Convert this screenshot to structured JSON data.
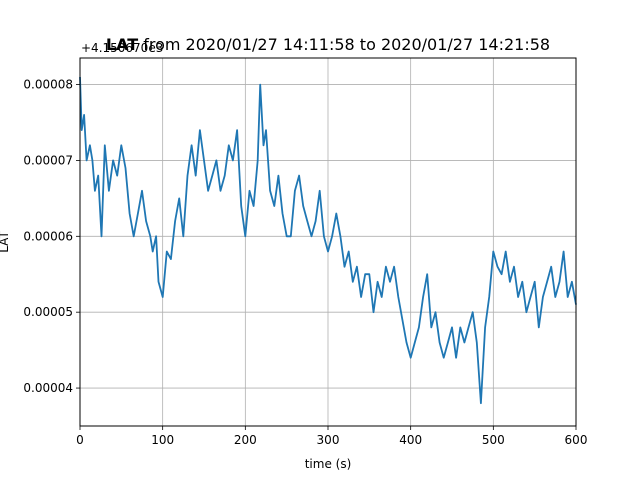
{
  "chart_data": {
    "type": "line",
    "title_bold": "LAT",
    "title_rest": " from 2020/01/27 14:11:58 to 2020/01/27 14:21:58",
    "offset_label": "+4.150670e3",
    "xlabel": "time (s)",
    "ylabel": "LAT",
    "xlim": [
      0,
      600
    ],
    "ylim": [
      3.5e-05,
      8.35e-05
    ],
    "xticks": [
      0,
      100,
      200,
      300,
      400,
      500,
      600
    ],
    "yticks": [
      4e-05,
      5e-05,
      6e-05,
      7e-05,
      8e-05
    ],
    "ytick_labels": [
      "0.00004",
      "0.00005",
      "0.00006",
      "0.00007",
      "0.00008"
    ],
    "grid": true,
    "color": "#1f77b4",
    "series": [
      {
        "x": [
          0,
          2,
          5,
          8,
          12,
          15,
          18,
          22,
          26,
          30,
          35,
          40,
          45,
          50,
          55,
          60,
          65,
          70,
          75,
          80,
          85,
          88,
          92,
          95,
          100,
          105,
          110,
          115,
          120,
          125,
          130,
          135,
          140,
          145,
          150,
          155,
          160,
          165,
          170,
          175,
          180,
          185,
          190,
          195,
          200,
          205,
          210,
          215,
          218,
          222,
          225,
          230,
          235,
          240,
          245,
          250,
          255,
          260,
          265,
          270,
          275,
          280,
          285,
          290,
          295,
          300,
          305,
          310,
          315,
          320,
          325,
          330,
          335,
          340,
          345,
          350,
          355,
          360,
          365,
          370,
          375,
          380,
          385,
          390,
          395,
          400,
          405,
          410,
          415,
          420,
          425,
          430,
          435,
          440,
          445,
          450,
          455,
          460,
          465,
          470,
          475,
          480,
          485,
          490,
          495,
          500,
          505,
          510,
          515,
          520,
          525,
          530,
          535,
          540,
          545,
          550,
          555,
          560,
          565,
          570,
          575,
          580,
          585,
          590,
          595,
          600
        ],
        "y": [
          8.1e-05,
          7.4e-05,
          7.6e-05,
          7e-05,
          7.2e-05,
          7e-05,
          6.6e-05,
          6.8e-05,
          6e-05,
          7.2e-05,
          6.6e-05,
          7e-05,
          6.8e-05,
          7.2e-05,
          6.9e-05,
          6.3e-05,
          6e-05,
          6.3e-05,
          6.6e-05,
          6.2e-05,
          6e-05,
          5.8e-05,
          6e-05,
          5.4e-05,
          5.2e-05,
          5.8e-05,
          5.7e-05,
          6.2e-05,
          6.5e-05,
          6e-05,
          6.8e-05,
          7.2e-05,
          6.8e-05,
          7.4e-05,
          7e-05,
          6.6e-05,
          6.8e-05,
          7e-05,
          6.6e-05,
          6.8e-05,
          7.2e-05,
          7e-05,
          7.4e-05,
          6.4e-05,
          6e-05,
          6.6e-05,
          6.4e-05,
          7e-05,
          8e-05,
          7.2e-05,
          7.4e-05,
          6.6e-05,
          6.4e-05,
          6.8e-05,
          6.3e-05,
          6e-05,
          6e-05,
          6.6e-05,
          6.8e-05,
          6.4e-05,
          6.2e-05,
          6e-05,
          6.2e-05,
          6.6e-05,
          6e-05,
          5.8e-05,
          6e-05,
          6.3e-05,
          6e-05,
          5.6e-05,
          5.8e-05,
          5.4e-05,
          5.6e-05,
          5.2e-05,
          5.5e-05,
          5.5e-05,
          5e-05,
          5.4e-05,
          5.2e-05,
          5.6e-05,
          5.4e-05,
          5.6e-05,
          5.2e-05,
          4.9e-05,
          4.6e-05,
          4.4e-05,
          4.6e-05,
          4.8e-05,
          5.2e-05,
          5.5e-05,
          4.8e-05,
          5e-05,
          4.6e-05,
          4.4e-05,
          4.6e-05,
          4.8e-05,
          4.4e-05,
          4.8e-05,
          4.6e-05,
          4.8e-05,
          5e-05,
          4.6e-05,
          3.8e-05,
          4.8e-05,
          5.2e-05,
          5.8e-05,
          5.6e-05,
          5.5e-05,
          5.8e-05,
          5.4e-05,
          5.6e-05,
          5.2e-05,
          5.4e-05,
          5e-05,
          5.2e-05,
          5.4e-05,
          4.8e-05,
          5.2e-05,
          5.4e-05,
          5.6e-05,
          5.2e-05,
          5.4e-05,
          5.8e-05,
          5.2e-05,
          5.4e-05,
          5.1e-05
        ]
      }
    ]
  }
}
